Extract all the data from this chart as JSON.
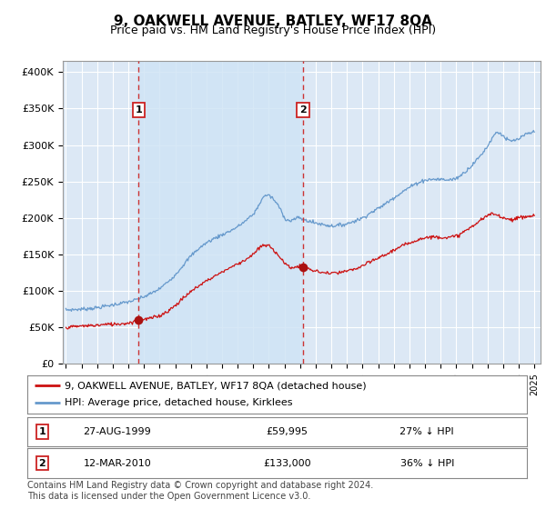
{
  "title": "9, OAKWELL AVENUE, BATLEY, WF17 8QA",
  "subtitle": "Price paid vs. HM Land Registry's House Price Index (HPI)",
  "title_fontsize": 11,
  "subtitle_fontsize": 9,
  "ylabel_ticks": [
    "£0",
    "£50K",
    "£100K",
    "£150K",
    "£200K",
    "£250K",
    "£300K",
    "£350K",
    "£400K"
  ],
  "ytick_values": [
    0,
    50000,
    100000,
    150000,
    200000,
    250000,
    300000,
    350000,
    400000
  ],
  "ylim": [
    0,
    415000
  ],
  "xlim_start": 1994.8,
  "xlim_end": 2025.4,
  "background_color": "#dce8f5",
  "shade_color": "#d0e4f5",
  "grid_color": "#ffffff",
  "hpi_line_color": "#6699cc",
  "price_line_color": "#cc1111",
  "sale1_date": 1999.65,
  "sale1_price": 59995,
  "sale1_label": "1",
  "sale2_date": 2010.18,
  "sale2_price": 133000,
  "sale2_label": "2",
  "vline_color": "#cc3333",
  "marker_color": "#aa1111",
  "legend_label_red": "9, OAKWELL AVENUE, BATLEY, WF17 8QA (detached house)",
  "legend_label_blue": "HPI: Average price, detached house, Kirklees",
  "table_rows": [
    [
      "1",
      "27-AUG-1999",
      "£59,995",
      "27% ↓ HPI"
    ],
    [
      "2",
      "12-MAR-2010",
      "£133,000",
      "36% ↓ HPI"
    ]
  ],
  "footnote": "Contains HM Land Registry data © Crown copyright and database right 2024.\nThis data is licensed under the Open Government Licence v3.0.",
  "xtick_years": [
    1995,
    1996,
    1997,
    1998,
    1999,
    2000,
    2001,
    2002,
    2003,
    2004,
    2005,
    2006,
    2007,
    2008,
    2009,
    2010,
    2011,
    2012,
    2013,
    2014,
    2015,
    2016,
    2017,
    2018,
    2019,
    2020,
    2021,
    2022,
    2023,
    2024,
    2025
  ],
  "hpi_anchors": [
    [
      1995.0,
      74000
    ],
    [
      1995.5,
      74500
    ],
    [
      1996.0,
      75000
    ],
    [
      1996.5,
      76000
    ],
    [
      1997.0,
      77000
    ],
    [
      1997.5,
      79000
    ],
    [
      1998.0,
      81000
    ],
    [
      1998.5,
      83000
    ],
    [
      1999.0,
      85000
    ],
    [
      1999.5,
      88000
    ],
    [
      2000.0,
      92000
    ],
    [
      2000.5,
      97000
    ],
    [
      2001.0,
      103000
    ],
    [
      2001.5,
      112000
    ],
    [
      2002.0,
      122000
    ],
    [
      2002.5,
      135000
    ],
    [
      2003.0,
      148000
    ],
    [
      2003.5,
      158000
    ],
    [
      2004.0,
      166000
    ],
    [
      2004.5,
      172000
    ],
    [
      2005.0,
      177000
    ],
    [
      2005.5,
      182000
    ],
    [
      2006.0,
      188000
    ],
    [
      2006.5,
      196000
    ],
    [
      2007.0,
      205000
    ],
    [
      2007.3,
      215000
    ],
    [
      2007.6,
      228000
    ],
    [
      2007.9,
      232000
    ],
    [
      2008.2,
      228000
    ],
    [
      2008.5,
      220000
    ],
    [
      2008.8,
      210000
    ],
    [
      2009.0,
      200000
    ],
    [
      2009.3,
      196000
    ],
    [
      2009.5,
      197000
    ],
    [
      2009.8,
      200000
    ],
    [
      2010.0,
      200000
    ],
    [
      2010.2,
      198000
    ],
    [
      2010.5,
      196000
    ],
    [
      2011.0,
      193000
    ],
    [
      2011.5,
      191000
    ],
    [
      2012.0,
      189000
    ],
    [
      2012.5,
      190000
    ],
    [
      2013.0,
      192000
    ],
    [
      2013.5,
      196000
    ],
    [
      2014.0,
      200000
    ],
    [
      2014.5,
      207000
    ],
    [
      2015.0,
      213000
    ],
    [
      2015.5,
      220000
    ],
    [
      2016.0,
      228000
    ],
    [
      2016.5,
      235000
    ],
    [
      2017.0,
      242000
    ],
    [
      2017.5,
      248000
    ],
    [
      2018.0,
      252000
    ],
    [
      2018.5,
      253000
    ],
    [
      2019.0,
      253000
    ],
    [
      2019.5,
      252000
    ],
    [
      2020.0,
      254000
    ],
    [
      2020.5,
      262000
    ],
    [
      2021.0,
      272000
    ],
    [
      2021.5,
      284000
    ],
    [
      2022.0,
      298000
    ],
    [
      2022.3,
      310000
    ],
    [
      2022.6,
      318000
    ],
    [
      2022.9,
      315000
    ],
    [
      2023.2,
      308000
    ],
    [
      2023.5,
      305000
    ],
    [
      2024.0,
      308000
    ],
    [
      2024.5,
      315000
    ],
    [
      2025.0,
      318000
    ]
  ],
  "price_anchors": [
    [
      1995.0,
      50000
    ],
    [
      1995.5,
      51000
    ],
    [
      1996.0,
      52000
    ],
    [
      1996.5,
      52500
    ],
    [
      1997.0,
      53000
    ],
    [
      1997.5,
      54000
    ],
    [
      1998.0,
      54500
    ],
    [
      1998.5,
      55000
    ],
    [
      1999.0,
      56000
    ],
    [
      1999.65,
      59995
    ],
    [
      2000.0,
      61000
    ],
    [
      2000.5,
      63000
    ],
    [
      2001.0,
      66000
    ],
    [
      2001.5,
      72000
    ],
    [
      2002.0,
      80000
    ],
    [
      2002.5,
      90000
    ],
    [
      2003.0,
      99000
    ],
    [
      2003.5,
      107000
    ],
    [
      2004.0,
      114000
    ],
    [
      2004.5,
      120000
    ],
    [
      2005.0,
      126000
    ],
    [
      2005.5,
      132000
    ],
    [
      2006.0,
      137000
    ],
    [
      2006.5,
      143000
    ],
    [
      2007.0,
      150000
    ],
    [
      2007.3,
      157000
    ],
    [
      2007.6,
      162000
    ],
    [
      2007.9,
      163000
    ],
    [
      2008.2,
      158000
    ],
    [
      2008.5,
      152000
    ],
    [
      2008.8,
      144000
    ],
    [
      2009.0,
      138000
    ],
    [
      2009.3,
      133000
    ],
    [
      2009.5,
      132000
    ],
    [
      2009.8,
      133000
    ],
    [
      2010.0,
      133500
    ],
    [
      2010.18,
      133000
    ],
    [
      2010.5,
      130000
    ],
    [
      2011.0,
      127000
    ],
    [
      2011.5,
      125000
    ],
    [
      2012.0,
      124000
    ],
    [
      2012.5,
      125000
    ],
    [
      2013.0,
      127000
    ],
    [
      2013.5,
      130000
    ],
    [
      2014.0,
      134000
    ],
    [
      2014.5,
      140000
    ],
    [
      2015.0,
      145000
    ],
    [
      2015.5,
      150000
    ],
    [
      2016.0,
      156000
    ],
    [
      2016.5,
      161000
    ],
    [
      2017.0,
      166000
    ],
    [
      2017.5,
      170000
    ],
    [
      2018.0,
      173000
    ],
    [
      2018.5,
      174000
    ],
    [
      2019.0,
      174000
    ],
    [
      2019.5,
      173000
    ],
    [
      2020.0,
      175000
    ],
    [
      2020.5,
      181000
    ],
    [
      2021.0,
      188000
    ],
    [
      2021.5,
      196000
    ],
    [
      2022.0,
      203000
    ],
    [
      2022.3,
      206000
    ],
    [
      2022.6,
      204000
    ],
    [
      2022.9,
      202000
    ],
    [
      2023.2,
      199000
    ],
    [
      2023.5,
      198000
    ],
    [
      2024.0,
      200000
    ],
    [
      2024.5,
      202000
    ],
    [
      2025.0,
      203000
    ]
  ]
}
